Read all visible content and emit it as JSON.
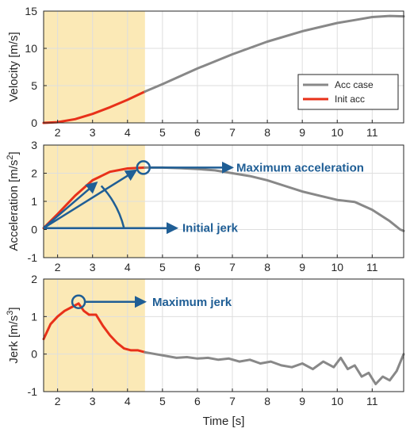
{
  "chart_data": [
    {
      "type": "line",
      "ylabel": "Velocity [m/s]",
      "xlim": [
        1.6,
        11.9
      ],
      "ylim": [
        0,
        15
      ],
      "yticks": [
        0,
        5,
        10,
        15
      ],
      "xticks": [
        2,
        3,
        4,
        5,
        6,
        7,
        8,
        9,
        10,
        11
      ],
      "grid": true,
      "highlight_x": [
        1.6,
        4.5
      ],
      "highlight_color": "#fbe9b6",
      "legend": {
        "position": "inside-right",
        "entries": [
          {
            "label": "Acc case",
            "color": "#888888"
          },
          {
            "label": "Init acc",
            "color": "#e8311a"
          }
        ]
      },
      "series": [
        {
          "name": "Init acc",
          "color": "#e8311a",
          "x": [
            1.6,
            2.0,
            2.5,
            3.0,
            3.5,
            4.0,
            4.5
          ],
          "y": [
            0.0,
            0.1,
            0.5,
            1.2,
            2.1,
            3.1,
            4.2
          ]
        },
        {
          "name": "Acc case",
          "color": "#888888",
          "x": [
            4.5,
            5.0,
            6.0,
            7.0,
            8.0,
            9.0,
            10.0,
            10.5,
            11.0,
            11.5,
            11.9
          ],
          "y": [
            4.2,
            5.2,
            7.3,
            9.2,
            10.9,
            12.3,
            13.4,
            13.8,
            14.2,
            14.35,
            14.3
          ]
        }
      ]
    },
    {
      "type": "line",
      "ylabel": "Acceleration [m/s",
      "ylabel_sup": "2",
      "ylabel_end": "]",
      "xlim": [
        1.6,
        11.9
      ],
      "ylim": [
        -1,
        3
      ],
      "yticks": [
        -1,
        0,
        1,
        2,
        3
      ],
      "xticks": [
        2,
        3,
        4,
        5,
        6,
        7,
        8,
        9,
        10,
        11
      ],
      "grid": true,
      "highlight_x": [
        1.6,
        4.5
      ],
      "highlight_color": "#fbe9b6",
      "series": [
        {
          "name": "Init acc",
          "color": "#e8311a",
          "x": [
            1.6,
            2.0,
            2.5,
            3.0,
            3.5,
            4.0,
            4.5
          ],
          "y": [
            0.05,
            0.55,
            1.2,
            1.75,
            2.05,
            2.17,
            2.2
          ]
        },
        {
          "name": "Acc case",
          "color": "#888888",
          "x": [
            4.5,
            5.0,
            5.5,
            6.0,
            6.5,
            7.0,
            7.5,
            8.0,
            8.5,
            9.0,
            9.5,
            10.0,
            10.5,
            11.0,
            11.5,
            11.8,
            11.9
          ],
          "y": [
            2.2,
            2.2,
            2.18,
            2.15,
            2.1,
            2.0,
            1.9,
            1.75,
            1.55,
            1.35,
            1.2,
            1.05,
            0.98,
            0.7,
            0.3,
            0.0,
            -0.05
          ]
        }
      ],
      "annotations": [
        {
          "text": "Maximum acceleration",
          "x": 4.5,
          "y": 2.2
        },
        {
          "text": "Initial jerk",
          "x": 1.6,
          "y": 0.05
        }
      ]
    },
    {
      "type": "line",
      "ylabel": "Jerk [m/s",
      "ylabel_sup": "3",
      "ylabel_end": "]",
      "xlabel": "Time [s]",
      "xlim": [
        1.6,
        11.9
      ],
      "ylim": [
        -1,
        2
      ],
      "yticks": [
        -1,
        0,
        1,
        2
      ],
      "xticks": [
        2,
        3,
        4,
        5,
        6,
        7,
        8,
        9,
        10,
        11
      ],
      "grid": true,
      "highlight_x": [
        1.6,
        4.5
      ],
      "highlight_color": "#fbe9b6",
      "series": [
        {
          "name": "Init acc",
          "color": "#e8311a",
          "x": [
            1.6,
            1.8,
            2.0,
            2.2,
            2.4,
            2.6,
            2.75,
            2.9,
            3.1,
            3.3,
            3.5,
            3.7,
            3.9,
            4.1,
            4.3,
            4.5
          ],
          "y": [
            0.4,
            0.8,
            1.0,
            1.15,
            1.25,
            1.35,
            1.15,
            1.05,
            1.05,
            0.75,
            0.5,
            0.3,
            0.15,
            0.1,
            0.1,
            0.05
          ]
        },
        {
          "name": "Acc case",
          "color": "#888888",
          "x": [
            4.5,
            4.8,
            5.1,
            5.4,
            5.7,
            6.0,
            6.3,
            6.6,
            6.9,
            7.2,
            7.5,
            7.8,
            8.1,
            8.4,
            8.7,
            9.0,
            9.3,
            9.6,
            9.9,
            10.1,
            10.3,
            10.5,
            10.7,
            10.9,
            11.1,
            11.3,
            11.5,
            11.7,
            11.9
          ],
          "y": [
            0.05,
            0.0,
            -0.05,
            -0.1,
            -0.08,
            -0.12,
            -0.1,
            -0.15,
            -0.12,
            -0.2,
            -0.15,
            -0.25,
            -0.2,
            -0.3,
            -0.35,
            -0.25,
            -0.4,
            -0.2,
            -0.35,
            -0.1,
            -0.4,
            -0.3,
            -0.6,
            -0.5,
            -0.8,
            -0.6,
            -0.7,
            -0.45,
            0.0
          ]
        }
      ],
      "annotations": [
        {
          "text": "Maximum jerk",
          "x": 2.6,
          "y": 1.35
        }
      ]
    }
  ]
}
